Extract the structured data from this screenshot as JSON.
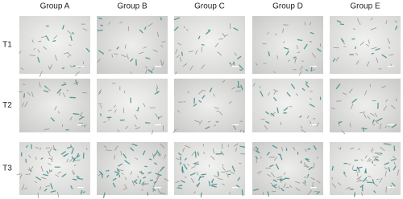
{
  "columns": [
    "Group A",
    "Group B",
    "Group C",
    "Group D",
    "Group E"
  ],
  "rows": [
    "T1",
    "T2",
    "T3"
  ]
}
